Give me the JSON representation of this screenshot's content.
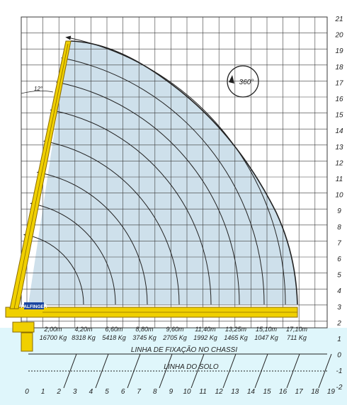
{
  "y_axis_ticks": [
    "21",
    "20",
    "19",
    "18",
    "17",
    "16",
    "15",
    "14",
    "13",
    "12",
    "11",
    "10",
    "9",
    "8",
    "7",
    "6",
    "5",
    "4",
    "3",
    "2",
    "1",
    "0",
    "-1",
    "-2"
  ],
  "x_axis_ticks": [
    "0",
    "1",
    "2",
    "3",
    "4",
    "5",
    "6",
    "7",
    "8",
    "9",
    "10",
    "11",
    "12",
    "13",
    "14",
    "15",
    "16",
    "17",
    "18",
    "19"
  ],
  "boom_angle_label": "12°",
  "rotation_label": "360°",
  "brand_badge": "PALFINGER",
  "reach_points": [
    {
      "distance": "2,00m",
      "load": "16700 Kg"
    },
    {
      "distance": "4,20m",
      "load": "8318 Kg"
    },
    {
      "distance": "6,60m",
      "load": "5418 Kg"
    },
    {
      "distance": "8,80m",
      "load": "3745 Kg"
    },
    {
      "distance": "9,60m",
      "load": "2705 Kg"
    },
    {
      "distance": "11,40m",
      "load": "1992 Kg"
    },
    {
      "distance": "13,25m",
      "load": "1465 Kg"
    },
    {
      "distance": "15,10m",
      "load": "1047 Kg"
    },
    {
      "distance": "17,10m",
      "load": "711 Kg"
    }
  ],
  "chassis_line_label": "LINHA DE FIXAÇÃO NO CHASSI",
  "ground_line_label": "LINHA DO SOLO",
  "colors": {
    "grid": "#3a3a3a",
    "envelope": "#c9dde9",
    "boom": "#f0d000",
    "boom_outline": "#8a6b00",
    "ground_band": "#dff6fb"
  }
}
